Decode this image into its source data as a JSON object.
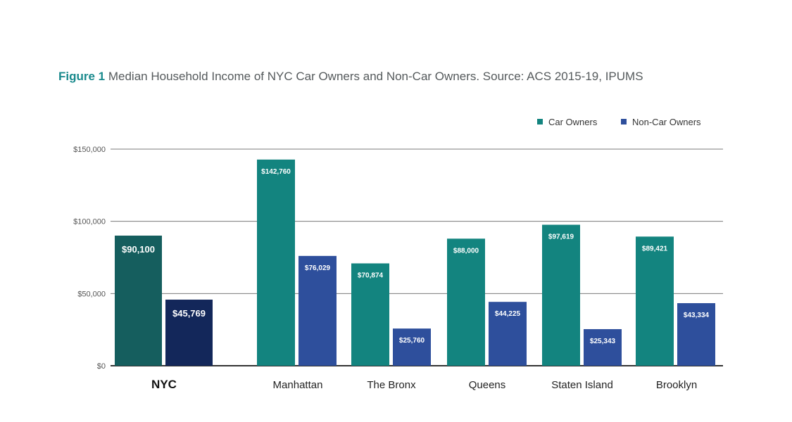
{
  "figure_label": "Figure 1",
  "title": "Median Household Income of NYC Car Owners and Non-Car Owners. Source: ACS 2015-19, IPUMS",
  "colors": {
    "car": "#13847f",
    "noncar": "#2e4f9c",
    "nyc_car": "#155e5e",
    "nyc_noncar": "#13275a",
    "text": "#4a4a4a",
    "grid": "#7a7a7a"
  },
  "chart_data": {
    "type": "bar",
    "categories": [
      "NYC",
      "Manhattan",
      "The Bronx",
      "Queens",
      "Staten Island",
      "Brooklyn"
    ],
    "series": [
      {
        "name": "Car Owners",
        "values": [
          90100,
          142760,
          70874,
          88000,
          97619,
          89421
        ]
      },
      {
        "name": "Non-Car Owners",
        "values": [
          45769,
          76029,
          25760,
          44225,
          25343,
          43334
        ]
      }
    ],
    "value_labels": [
      [
        "$90,100",
        "$142,760",
        "$70,874",
        "$88,000",
        "$97,619",
        "$89,421"
      ],
      [
        "$45,769",
        "$76,029",
        "$25,760",
        "$44,225",
        "$25,343",
        "$43,334"
      ]
    ],
    "yticks": [
      0,
      50000,
      100000,
      150000
    ],
    "ytick_labels": [
      "$0",
      "$50,000",
      "$100,000",
      "$150,000"
    ],
    "ylim": [
      0,
      150000
    ],
    "grid": true,
    "legend_position": "top-right"
  }
}
